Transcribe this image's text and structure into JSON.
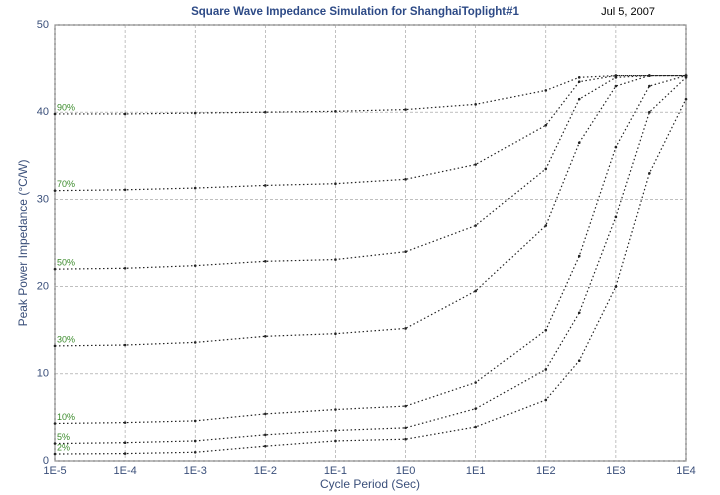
{
  "chart_data": {
    "type": "line",
    "title": "Square Wave Impedance Simulation for ShanghaiToplight#1",
    "annotation": "Jul 5, 2007",
    "x_label": "Cycle Period (Sec)",
    "y_label": "Peak Power Impedance (°C/W)",
    "x_scale": "log",
    "grid": true,
    "x": [
      1e-05,
      0.0001,
      0.001,
      0.01,
      0.1,
      1,
      10,
      100,
      300,
      1000,
      3000,
      10000
    ],
    "xlim": [
      1e-05,
      10000
    ],
    "xticks": [
      {
        "value": 1e-05,
        "label": "1E-5"
      },
      {
        "value": 0.0001,
        "label": "1E-4"
      },
      {
        "value": 0.001,
        "label": "1E-3"
      },
      {
        "value": 0.01,
        "label": "1E-2"
      },
      {
        "value": 0.1,
        "label": "1E-1"
      },
      {
        "value": 1,
        "label": "1E0"
      },
      {
        "value": 10,
        "label": "1E1"
      },
      {
        "value": 100,
        "label": "1E2"
      },
      {
        "value": 1000,
        "label": "1E3"
      },
      {
        "value": 10000,
        "label": "1E4"
      }
    ],
    "ylim": [
      0,
      50
    ],
    "yticks": [
      0,
      10,
      20,
      30,
      40,
      50
    ],
    "label_color": "#3a8a2a",
    "series": [
      {
        "name": "90%",
        "color": "#222222",
        "values": [
          39.8,
          39.8,
          39.9,
          40.0,
          40.1,
          40.3,
          40.9,
          42.5,
          44.0,
          44.2,
          44.2,
          44.2
        ]
      },
      {
        "name": "70%",
        "color": "#222222",
        "values": [
          31.0,
          31.1,
          31.3,
          31.6,
          31.8,
          32.3,
          34.0,
          38.5,
          43.5,
          44.2,
          44.2,
          44.2
        ]
      },
      {
        "name": "50%",
        "color": "#222222",
        "values": [
          22.0,
          22.1,
          22.4,
          22.9,
          23.1,
          24.0,
          27.0,
          33.5,
          41.5,
          44.0,
          44.2,
          44.2
        ]
      },
      {
        "name": "30%",
        "color": "#222222",
        "values": [
          13.2,
          13.3,
          13.6,
          14.3,
          14.6,
          15.2,
          19.5,
          27.0,
          36.5,
          43.0,
          44.2,
          44.2
        ]
      },
      {
        "name": "10%",
        "color": "#222222",
        "values": [
          4.3,
          4.4,
          4.6,
          5.4,
          5.9,
          6.3,
          9.0,
          15.0,
          23.5,
          36.0,
          43.0,
          44.2
        ]
      },
      {
        "name": "5%",
        "color": "#222222",
        "values": [
          2.0,
          2.1,
          2.3,
          3.0,
          3.5,
          3.8,
          6.0,
          10.5,
          17.0,
          28.0,
          40.0,
          44.0
        ]
      },
      {
        "name": "2%",
        "color": "#222222",
        "values": [
          0.8,
          0.85,
          1.0,
          1.7,
          2.3,
          2.5,
          3.9,
          7.0,
          11.5,
          20.0,
          33.0,
          41.5
        ]
      }
    ]
  }
}
